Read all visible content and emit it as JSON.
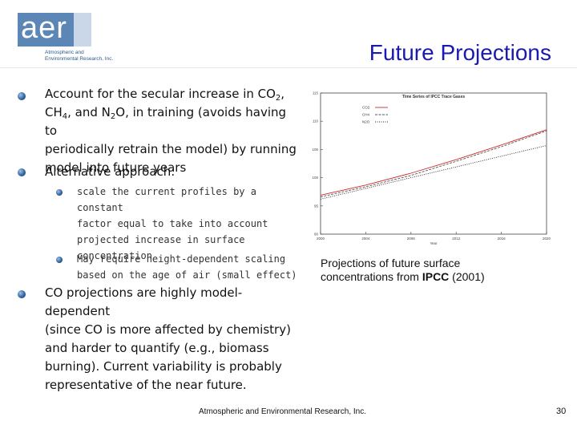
{
  "logo": {
    "mark": "aer",
    "subtitle_line1": "Atmospheric and",
    "subtitle_line2": "Environmental Research, Inc."
  },
  "slide_title": "Future Projections",
  "bullets": {
    "b1": {
      "l1a": "Account for the secular increase in CO",
      "l1sub": "2",
      "l1b": ",",
      "l2a": "CH",
      "l2sub": "4",
      "l2b": ", and N",
      "l2sub2": "2",
      "l2c": "O, in training (avoids having to",
      "l3": "periodically retrain the model) by running",
      "l4": "model into future years"
    },
    "b2": "Alternative approach:",
    "b2a": [
      "scale the current profiles by a constant",
      "factor equal to take into account",
      "projected increase in surface",
      "concentration"
    ],
    "b2b": [
      "May require height-dependent scaling",
      "based on the age of air (small effect)"
    ],
    "b3": [
      "CO projections are highly model-dependent",
      "(since CO is more affected by chemistry)",
      "and harder to quantify (e.g., biomass",
      "burning). Current variability is probably",
      "representative of the near future."
    ]
  },
  "caption": {
    "text1": "Projections of future surface",
    "text2": "concentrations from ",
    "bold": "IPCC",
    "text3": " (2001)"
  },
  "footer": "Atmospheric and Environmental Research, Inc.",
  "page_number": "30",
  "chart_data": {
    "type": "line",
    "title": "Time Series of IPCC Trace Gases",
    "xlabel": "Year",
    "ylabel": "",
    "xlim": [
      2000,
      2020
    ],
    "ylim": [
      90,
      115
    ],
    "x_ticks": [
      "2000",
      "2004",
      "2008",
      "2012",
      "2016",
      "2020"
    ],
    "y_ticks": [
      "90",
      "95",
      "100",
      "105",
      "110",
      "115"
    ],
    "legend": [
      "CO2",
      "CH4",
      "N2O"
    ],
    "series": [
      {
        "name": "CO2",
        "color": "#cc2a2a",
        "x": [
          2000,
          2004,
          2008,
          2012,
          2016,
          2020
        ],
        "y": [
          96.9,
          98.7,
          100.8,
          103.2,
          105.8,
          108.5
        ]
      },
      {
        "name": "CH4",
        "color": "#555555",
        "x": [
          2000,
          2004,
          2008,
          2012,
          2016,
          2020
        ],
        "y": [
          96.6,
          98.4,
          100.4,
          102.9,
          105.5,
          108.3
        ]
      },
      {
        "name": "N2O",
        "color": "#222222",
        "x": [
          2000,
          2004,
          2008,
          2012,
          2016,
          2020
        ],
        "y": [
          96.2,
          98.1,
          100.0,
          101.9,
          103.8,
          105.7
        ]
      }
    ]
  }
}
